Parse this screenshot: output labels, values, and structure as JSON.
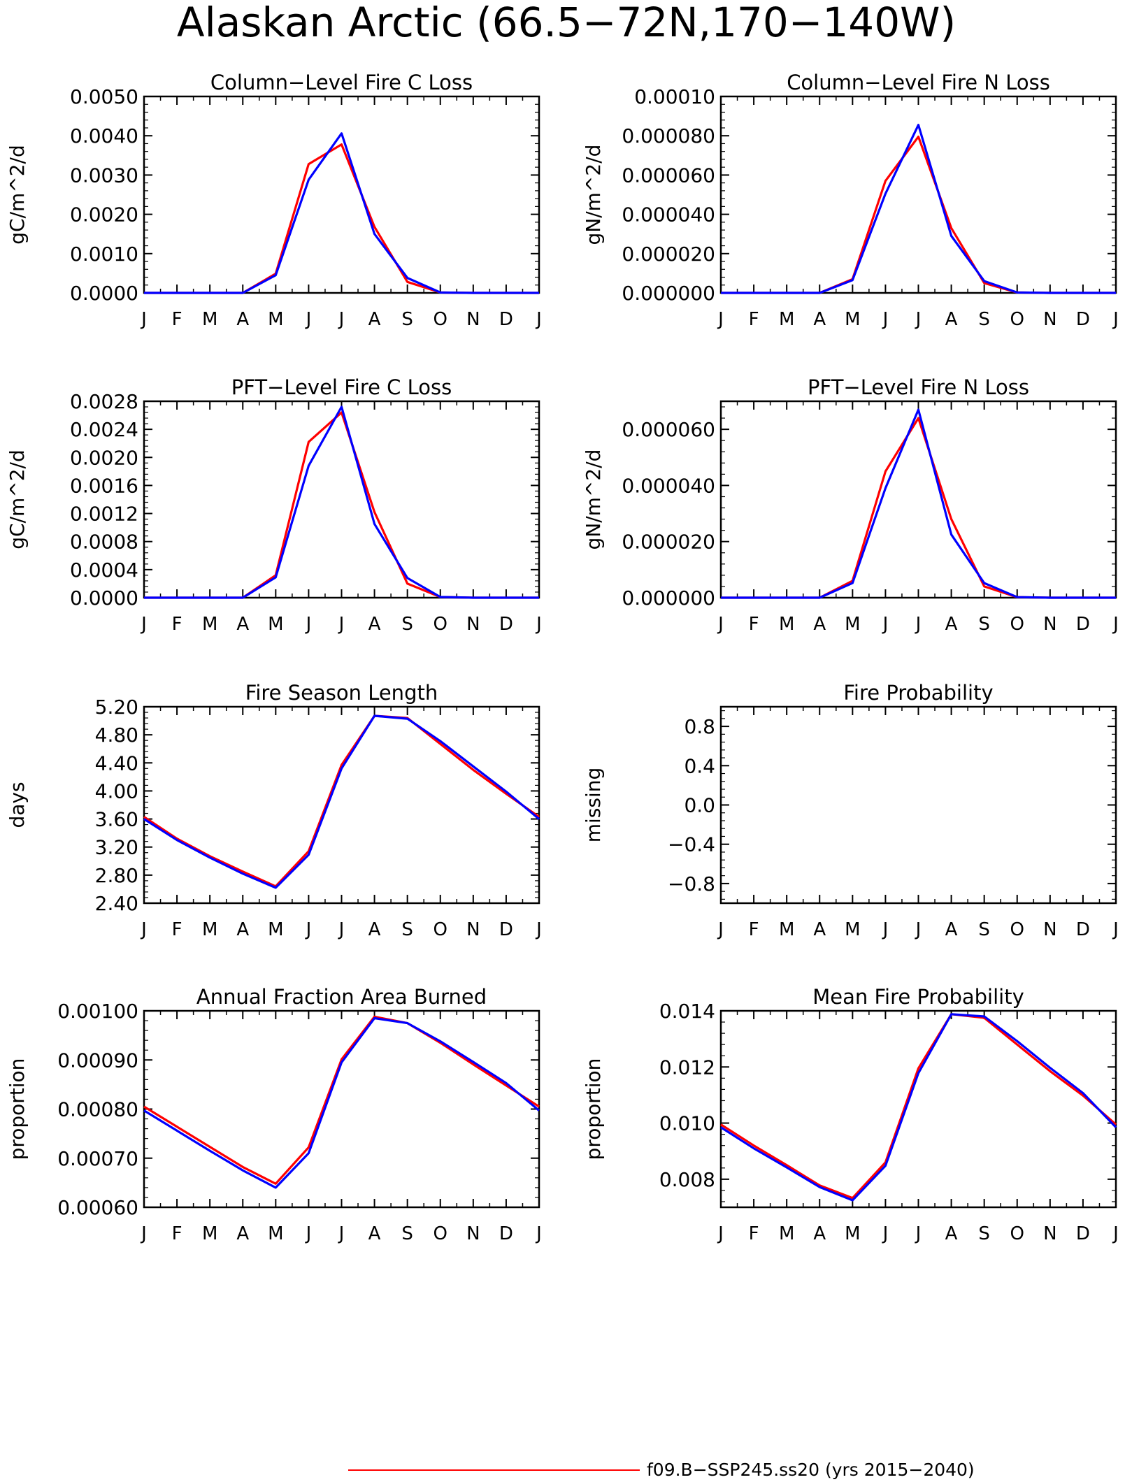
{
  "figure_title": "Alaskan Arctic (66.5−72N,170−140W)",
  "legend": [
    {
      "label": "f09.B−SSP245.ss20 (yrs 2015−2040)",
      "color": "#ff0000"
    }
  ],
  "colors": {
    "series_red": "#ff0000",
    "series_blue": "#0000ff",
    "axis": "#000000"
  },
  "chart_data": [
    {
      "type": "line",
      "title": "Column−Level Fire C Loss",
      "ylabel": "gC/m^2/d",
      "categories": [
        "J",
        "F",
        "M",
        "A",
        "M",
        "J",
        "J",
        "A",
        "S",
        "O",
        "N",
        "D",
        "J"
      ],
      "ylim": [
        0,
        0.005
      ],
      "yticks": [
        0,
        0.001,
        0.002,
        0.003,
        0.004,
        0.005
      ],
      "ytick_labels": [
        "0.0000",
        "0.0010",
        "0.0020",
        "0.0030",
        "0.0040",
        "0.0050"
      ],
      "series": [
        {
          "color": "#ff0000",
          "values": [
            0,
            0,
            0,
            0,
            0.00049,
            0.00328,
            0.00378,
            0.00168,
            0.00028,
            1e-05,
            0,
            0,
            0
          ]
        },
        {
          "color": "#0000ff",
          "values": [
            0,
            0,
            0,
            0,
            0.00045,
            0.00288,
            0.00406,
            0.0015,
            0.00038,
            1e-05,
            0,
            0,
            0
          ]
        }
      ]
    },
    {
      "type": "line",
      "title": "Column−Level Fire N Loss",
      "ylabel": "gN/m^2/d",
      "categories": [
        "J",
        "F",
        "M",
        "A",
        "M",
        "J",
        "J",
        "A",
        "S",
        "O",
        "N",
        "D",
        "J"
      ],
      "ylim": [
        0,
        0.0001
      ],
      "yticks": [
        0,
        2e-05,
        4e-05,
        6e-05,
        8e-05,
        0.0001
      ],
      "ytick_labels": [
        "0.000000",
        "0.000020",
        "0.000040",
        "0.000060",
        "0.000080",
        "0.00010"
      ],
      "series": [
        {
          "color": "#ff0000",
          "values": [
            0,
            0,
            0,
            0,
            7e-06,
            5.7e-05,
            7.95e-05,
            3.3e-05,
            5e-06,
            2e-07,
            0,
            0,
            0
          ]
        },
        {
          "color": "#0000ff",
          "values": [
            0,
            0,
            0,
            0,
            6.5e-06,
            5.05e-05,
            8.55e-05,
            2.9e-05,
            6e-06,
            2e-07,
            0,
            0,
            0
          ]
        }
      ]
    },
    {
      "type": "line",
      "title": "PFT−Level Fire C Loss",
      "ylabel": "gC/m^2/d",
      "categories": [
        "J",
        "F",
        "M",
        "A",
        "M",
        "J",
        "J",
        "A",
        "S",
        "O",
        "N",
        "D",
        "J"
      ],
      "ylim": [
        0,
        0.0028
      ],
      "yticks": [
        0,
        0.0004,
        0.0008,
        0.0012,
        0.0016,
        0.002,
        0.0024,
        0.0028
      ],
      "ytick_labels": [
        "0.0000",
        "0.0004",
        "0.0008",
        "0.0012",
        "0.0016",
        "0.0020",
        "0.0024",
        "0.0028"
      ],
      "series": [
        {
          "color": "#ff0000",
          "values": [
            0,
            0,
            0,
            0,
            0.00032,
            0.00222,
            0.00264,
            0.00122,
            0.0002,
            1e-05,
            0,
            0,
            0
          ]
        },
        {
          "color": "#0000ff",
          "values": [
            0,
            0,
            0,
            0,
            0.00029,
            0.00188,
            0.00272,
            0.00105,
            0.00028,
            1e-05,
            0,
            0,
            0
          ]
        }
      ]
    },
    {
      "type": "line",
      "title": "PFT−Level Fire N Loss",
      "ylabel": "gN/m^2/d",
      "categories": [
        "J",
        "F",
        "M",
        "A",
        "M",
        "J",
        "J",
        "A",
        "S",
        "O",
        "N",
        "D",
        "J"
      ],
      "ylim": [
        0,
        7e-05
      ],
      "yticks": [
        0,
        2e-05,
        4e-05,
        6e-05
      ],
      "ytick_labels": [
        "0.000000",
        "0.000020",
        "0.000040",
        "0.000060"
      ],
      "series": [
        {
          "color": "#ff0000",
          "values": [
            0,
            0,
            0,
            0,
            6e-06,
            4.5e-05,
            6.4e-05,
            2.8e-05,
            4e-06,
            2e-07,
            0,
            0,
            0
          ]
        },
        {
          "color": "#0000ff",
          "values": [
            0,
            0,
            0,
            0,
            5.2e-06,
            3.9e-05,
            6.7e-05,
            2.25e-05,
            5.2e-06,
            2e-07,
            0,
            0,
            0
          ]
        }
      ]
    },
    {
      "type": "line",
      "title": "Fire Season Length",
      "ylabel": "days",
      "categories": [
        "J",
        "F",
        "M",
        "A",
        "M",
        "J",
        "J",
        "A",
        "S",
        "O",
        "N",
        "D",
        "J"
      ],
      "ylim": [
        2.4,
        5.2
      ],
      "yticks": [
        2.4,
        2.8,
        3.2,
        3.6,
        4.0,
        4.4,
        4.8,
        5.2
      ],
      "ytick_labels": [
        "2.40",
        "2.80",
        "3.20",
        "3.60",
        "4.00",
        "4.40",
        "4.80",
        "5.20"
      ],
      "series": [
        {
          "color": "#ff0000",
          "values": [
            3.63,
            3.32,
            3.07,
            2.85,
            2.64,
            3.14,
            4.37,
            5.07,
            5.04,
            4.67,
            4.3,
            3.96,
            3.63
          ]
        },
        {
          "color": "#0000ff",
          "values": [
            3.6,
            3.3,
            3.05,
            2.82,
            2.62,
            3.09,
            4.32,
            5.07,
            5.03,
            4.71,
            4.35,
            3.99,
            3.6
          ]
        }
      ]
    },
    {
      "type": "line",
      "title": "Fire Probability",
      "ylabel": "missing",
      "categories": [
        "J",
        "F",
        "M",
        "A",
        "M",
        "J",
        "J",
        "A",
        "S",
        "O",
        "N",
        "D",
        "J"
      ],
      "ylim": [
        -1.0,
        1.0
      ],
      "yticks": [
        -0.8,
        -0.4,
        0.0,
        0.4,
        0.8
      ],
      "ytick_labels": [
        "−0.8",
        "−0.4",
        "0.0",
        "0.4",
        "0.8"
      ],
      "series": []
    },
    {
      "type": "line",
      "title": "Annual Fraction Area Burned",
      "ylabel": "proportion",
      "categories": [
        "J",
        "F",
        "M",
        "A",
        "M",
        "J",
        "J",
        "A",
        "S",
        "O",
        "N",
        "D",
        "J"
      ],
      "ylim": [
        0.0006,
        0.001
      ],
      "yticks": [
        0.0006,
        0.0007,
        0.0008,
        0.0009,
        0.001
      ],
      "ytick_labels": [
        "0.00060",
        "0.00070",
        "0.00080",
        "0.00090",
        "0.00100"
      ],
      "series": [
        {
          "color": "#ff0000",
          "values": [
            0.000805,
            0.000764,
            0.000723,
            0.000682,
            0.000648,
            0.000722,
            0.000901,
            0.000988,
            0.000975,
            0.000935,
            0.000891,
            0.000848,
            0.000805
          ]
        },
        {
          "color": "#0000ff",
          "values": [
            0.000797,
            0.000756,
            0.000715,
            0.000675,
            0.00064,
            0.00071,
            0.000895,
            0.000985,
            0.000975,
            0.000938,
            0.000896,
            0.000853,
            0.000797
          ]
        }
      ]
    },
    {
      "type": "line",
      "title": "Mean Fire Probability",
      "ylabel": "proportion",
      "categories": [
        "J",
        "F",
        "M",
        "A",
        "M",
        "J",
        "J",
        "A",
        "S",
        "O",
        "N",
        "D",
        "J"
      ],
      "ylim": [
        0.007,
        0.014
      ],
      "yticks": [
        0.008,
        0.01,
        0.012,
        0.014
      ],
      "ytick_labels": [
        "0.008",
        "0.010",
        "0.012",
        "0.014"
      ],
      "series": [
        {
          "color": "#ff0000",
          "values": [
            0.00995,
            0.0092,
            0.0085,
            0.00778,
            0.00733,
            0.0086,
            0.01195,
            0.01388,
            0.01375,
            0.0128,
            0.01185,
            0.01098,
            0.00995
          ]
        },
        {
          "color": "#0000ff",
          "values": [
            0.00985,
            0.0091,
            0.00842,
            0.00772,
            0.00725,
            0.00848,
            0.01178,
            0.01388,
            0.0138,
            0.01292,
            0.01197,
            0.01107,
            0.00985
          ]
        }
      ]
    }
  ]
}
